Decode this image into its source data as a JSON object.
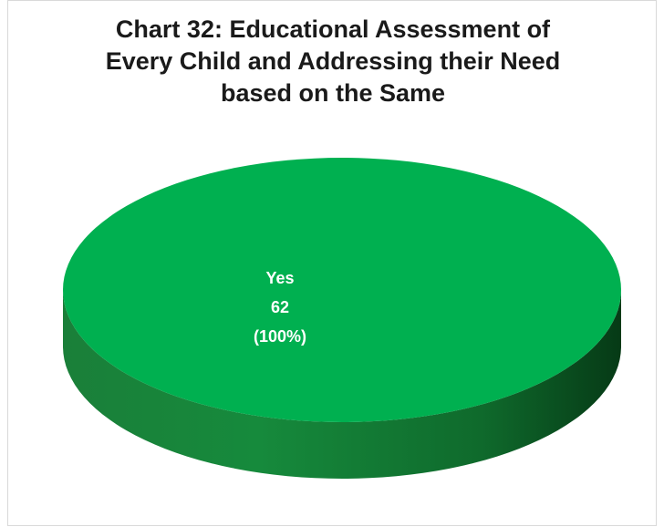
{
  "chart_data": {
    "type": "pie",
    "title_lines": [
      "Chart 32: Educational Assessment of",
      "Every Child and Addressing their Need",
      "based on the Same"
    ],
    "categories": [
      "Yes"
    ],
    "values": [
      62
    ],
    "labels": [
      {
        "category": "Yes",
        "value": "62",
        "percent": "(100%)"
      }
    ],
    "colors": {
      "top": "#00b050",
      "side_light": "#1c8f3f",
      "side_dark": "#0a4a1f"
    },
    "style": "3d-pie"
  }
}
